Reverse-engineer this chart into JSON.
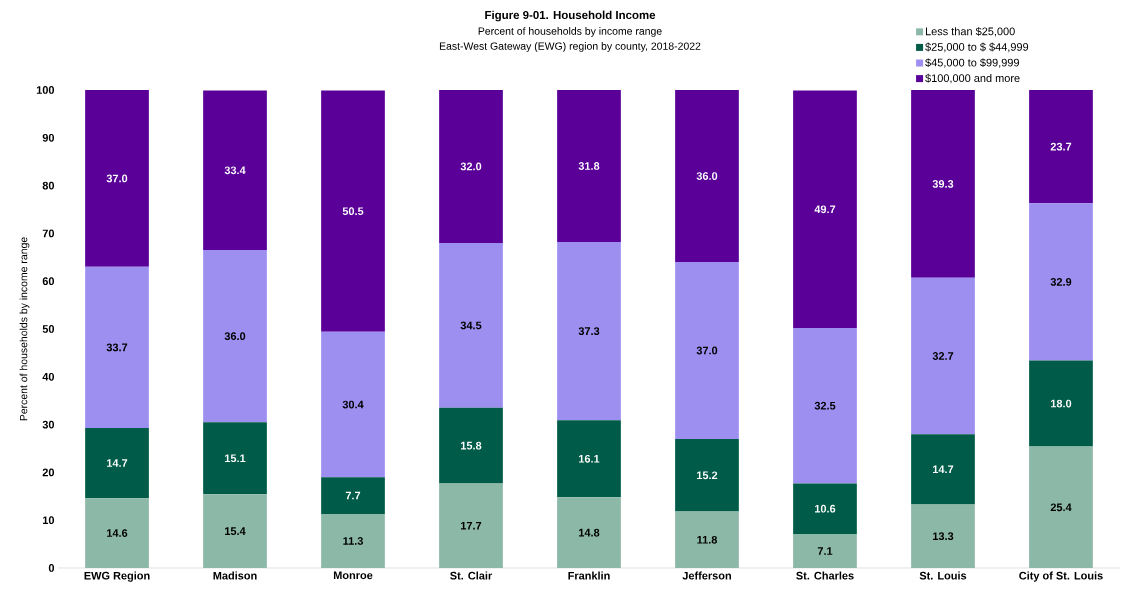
{
  "chart_data": {
    "type": "bar",
    "stacked": true,
    "title": "Figure 9-01. Household Income",
    "subtitle": "Percent of households by income range",
    "annotations": [
      "East-West Gateway (EWG) region by county, 2018-2022"
    ],
    "ylabel": "Percent of households by income range",
    "categories": [
      "EWG Region",
      "Madison",
      "Monroe",
      "St. Clair",
      "Franklin",
      "Jefferson",
      "St. Charles",
      "St. Louis",
      "City of St. Louis"
    ],
    "series": [
      {
        "name": "Less than $25,000",
        "color": "#8cb8a8",
        "values": [
          14.6,
          15.4,
          11.3,
          17.7,
          14.8,
          11.8,
          7.1,
          13.3,
          25.4
        ],
        "value_labels": [
          "14.6",
          "15.4",
          "11.3",
          "17.7",
          "14.8",
          "11.8",
          "7.1",
          "13.3",
          "25.4"
        ]
      },
      {
        "name": "$25,000 to $ $44,999",
        "color": "#005c48",
        "values": [
          14.7,
          15.1,
          7.7,
          15.8,
          16.1,
          15.2,
          10.6,
          14.7,
          18.0
        ],
        "value_labels": [
          "14.7",
          "15.1",
          "7.7",
          "15.8",
          "16.1",
          "15.2",
          "10.6",
          "14.7",
          "18.0"
        ]
      },
      {
        "name": "$45,000 to $99,999",
        "color": "#9c8ff0",
        "values": [
          33.7,
          36.0,
          30.4,
          34.5,
          37.3,
          37.0,
          32.5,
          32.7,
          32.9
        ],
        "value_labels": [
          "33.7",
          "36.0",
          "30.4",
          "34.5",
          "37.3",
          "37.0",
          "32.5",
          "32.7",
          "32.9"
        ]
      },
      {
        "name": "$100,000 and more",
        "color": "#5a0098",
        "values": [
          37.0,
          33.4,
          50.5,
          32.0,
          31.8,
          36.0,
          49.7,
          39.3,
          23.7
        ],
        "value_labels": [
          "37.0",
          "33.4",
          "50.5",
          "32.0",
          "31.8",
          "36.0",
          "49.7",
          "39.3",
          "23.7"
        ]
      }
    ],
    "ylim": [
      0,
      100
    ],
    "yticks": [
      0,
      10,
      20,
      30,
      40,
      50,
      60,
      70,
      80,
      90,
      100
    ],
    "legend": "top right",
    "grid": false
  }
}
